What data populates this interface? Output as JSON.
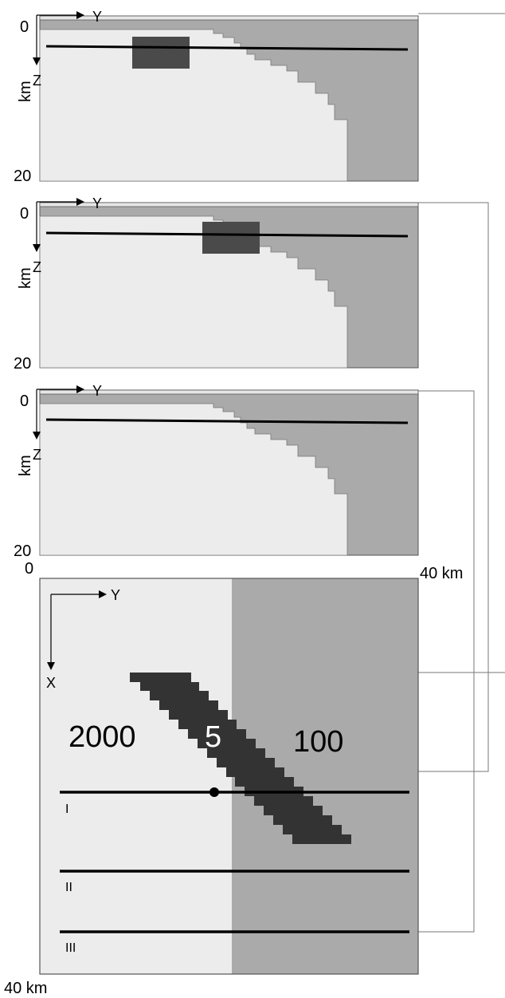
{
  "sections": [
    {
      "depth_top": "0",
      "depth_bottom": "20",
      "depth_unit": "km",
      "axis_y": "Y",
      "axis_z": "Z"
    },
    {
      "depth_top": "0",
      "depth_bottom": "20",
      "depth_unit": "km",
      "axis_y": "Y",
      "axis_z": "Z"
    },
    {
      "depth_top": "0",
      "depth_bottom": "20",
      "depth_unit": "km",
      "axis_y": "Y",
      "axis_z": "Z"
    }
  ],
  "plan": {
    "corner_origin": "0",
    "corner_right": "40 km",
    "corner_bottom": "40 km",
    "axis_y": "Y",
    "axis_x": "X",
    "value_left": "2000",
    "value_body": "5",
    "value_right": "100",
    "profiles": [
      "I",
      "II",
      "III"
    ]
  },
  "colors": {
    "light_block": "#ececec",
    "dark_block": "#aaaaaa",
    "body": "#333333",
    "body_section": "#4a4a4a",
    "line": "#000000",
    "connector": "#777777"
  }
}
